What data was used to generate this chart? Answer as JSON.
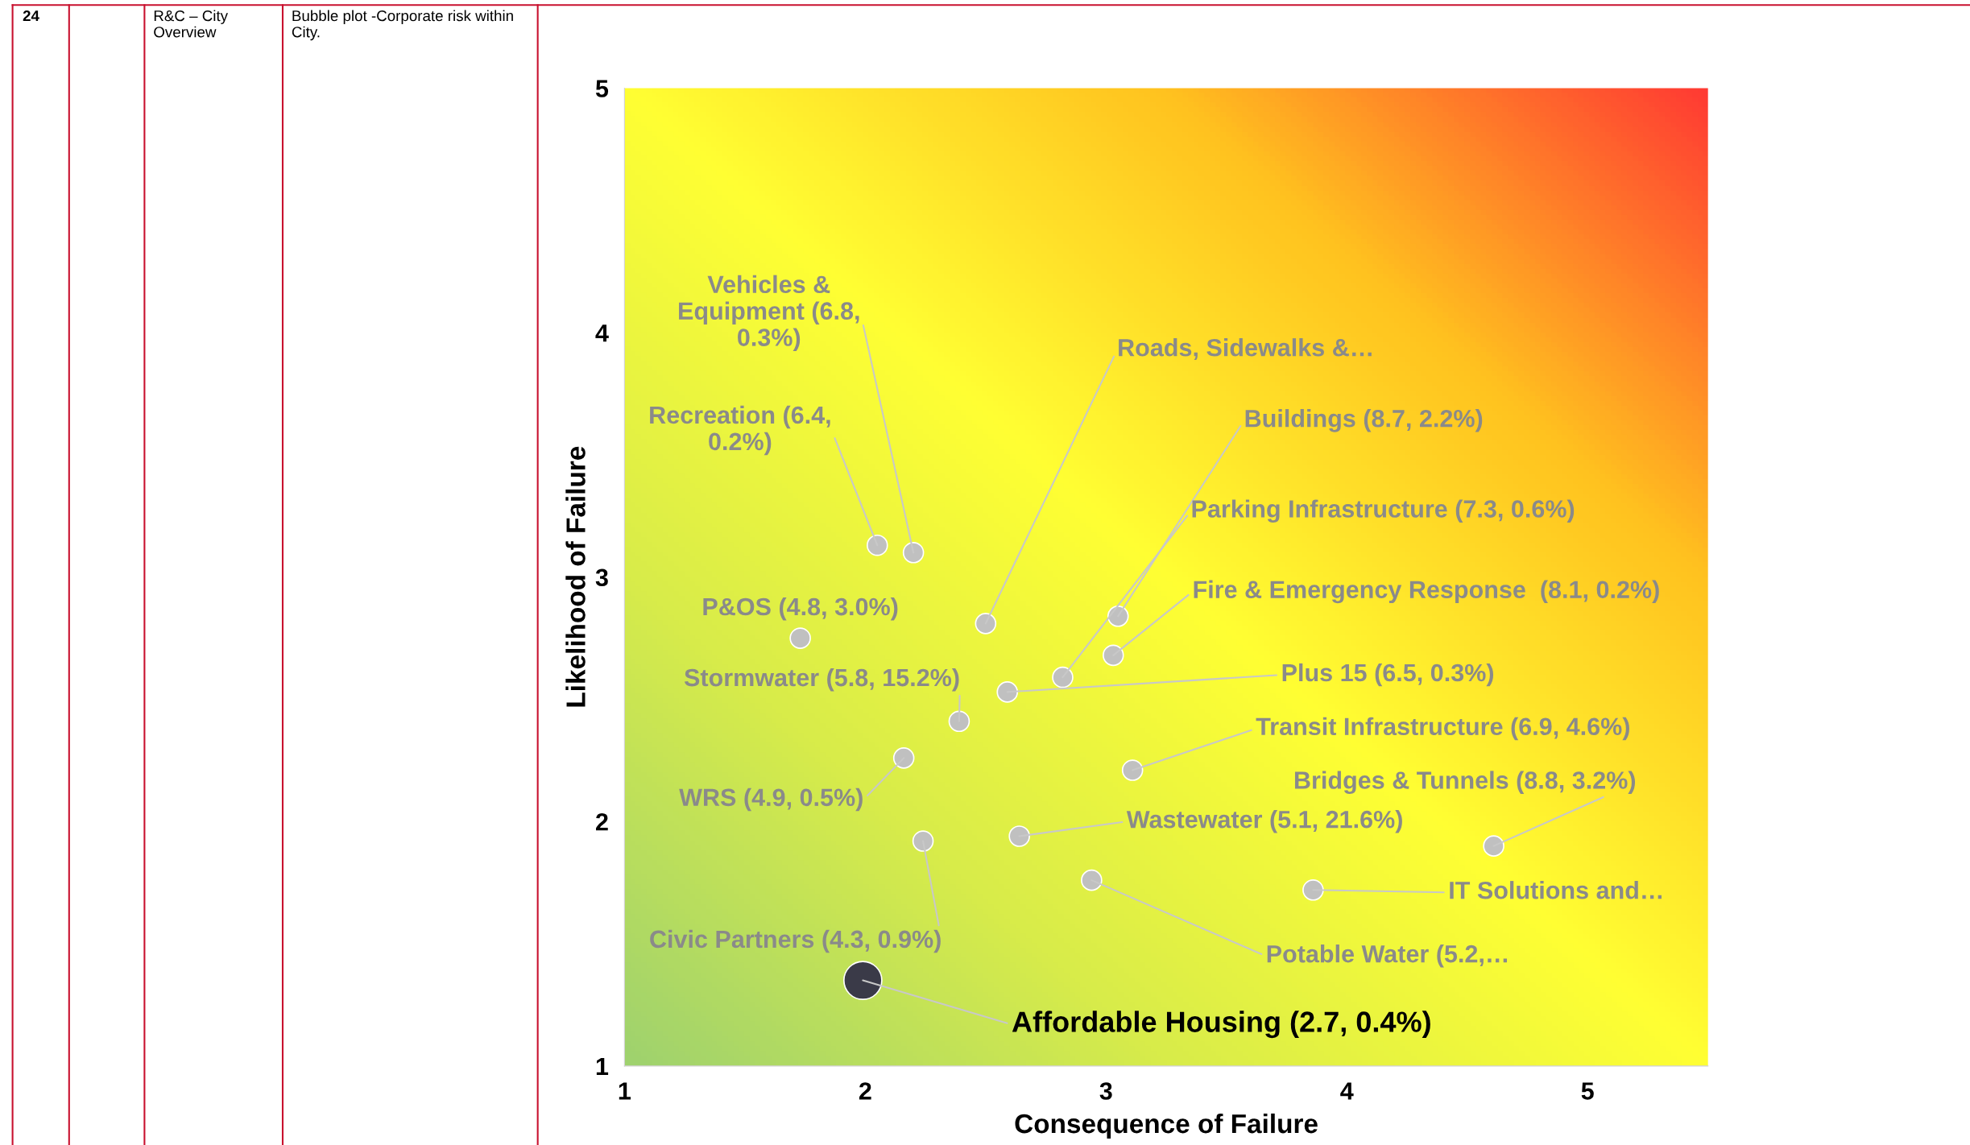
{
  "chart_data": {
    "type": "bubble",
    "xlabel": "Consequence of Failure",
    "ylabel": "Likelihood of Failure",
    "xlim": [
      1,
      5.5
    ],
    "ylim": [
      1,
      5
    ],
    "xticks": [
      1,
      2,
      3,
      4,
      5
    ],
    "yticks": [
      1,
      2,
      3,
      4,
      5
    ],
    "grid": false,
    "legend": false,
    "series": [
      {
        "x": [
          2.2,
          2.05,
          2.5,
          1.73,
          3.05,
          2.82,
          3.03,
          2.59,
          2.39,
          3.11,
          2.16,
          2.24,
          2.64,
          4.61,
          3.86,
          2.94,
          1.99
        ],
        "values": [
          3.1,
          3.13,
          2.81,
          2.75,
          2.84,
          2.59,
          2.68,
          2.53,
          2.41,
          2.21,
          2.26,
          1.92,
          1.94,
          1.9,
          1.72,
          1.76,
          1.35
        ],
        "sizes": [
          0.28,
          0.28,
          0.28,
          0.28,
          0.28,
          0.28,
          0.28,
          0.28,
          0.28,
          0.28,
          0.28,
          0.28,
          0.28,
          0.28,
          0.28,
          0.28,
          1
        ],
        "colors": [
          "#c0c0c0",
          "#c0c0c0",
          "#c0c0c0",
          "#c0c0c0",
          "#c0c0c0",
          "#c0c0c0",
          "#c0c0c0",
          "#c0c0c0",
          "#c0c0c0",
          "#c0c0c0",
          "#c0c0c0",
          "#c0c0c0",
          "#c0c0c0",
          "#c0c0c0",
          "#c0c0c0",
          "#c0c0c0",
          "#3a3a48"
        ]
      }
    ],
    "annotations": [
      {
        "text": "Vehicles &\nEquipment (6.8,\n0.3%)",
        "x": 2.2,
        "y": 3.1
      },
      {
        "text": "Recreation (6.4,\n0.2%)",
        "x": 2.05,
        "y": 3.13
      },
      {
        "text": "Roads, Sidewalks &…",
        "x": 2.5,
        "y": 2.81
      },
      {
        "text": "P&OS (4.8, 3.0%)",
        "x": 1.73,
        "y": 2.75
      },
      {
        "text": "Buildings (8.7, 2.2%)",
        "x": 3.05,
        "y": 2.84
      },
      {
        "text": "Parking Infrastructure (7.3, 0.6%)",
        "x": 2.82,
        "y": 2.59
      },
      {
        "text": "Fire & Emergency Response  (8.1, 0.2%)",
        "x": 3.03,
        "y": 2.68
      },
      {
        "text": "Plus 15 (6.5, 0.3%)",
        "x": 2.59,
        "y": 2.53
      },
      {
        "text": "Stormwater (5.8, 15.2%)",
        "x": 2.39,
        "y": 2.41
      },
      {
        "text": "Transit Infrastructure (6.9, 4.6%)",
        "x": 3.11,
        "y": 2.21
      },
      {
        "text": "WRS (4.9, 0.5%)",
        "x": 2.16,
        "y": 2.26
      },
      {
        "text": "Civic Partners (4.3, 0.9%)",
        "x": 2.24,
        "y": 1.92
      },
      {
        "text": "Wastewater (5.1, 21.6%)",
        "x": 2.64,
        "y": 1.94
      },
      {
        "text": "Bridges & Tunnels (8.8, 3.2%)",
        "x": 4.61,
        "y": 1.9
      },
      {
        "text": "IT Solutions and…",
        "x": 3.86,
        "y": 1.72
      },
      {
        "text": "Potable Water (5.2,…",
        "x": 2.94,
        "y": 1.76
      },
      {
        "text": "Affordable Housing (2.7, 0.4%)",
        "x": 1.99,
        "y": 1.35
      },
      "24",
      "R&C – City\nOverview",
      "Bubble plot -Corporate risk within\nCity."
    ]
  }
}
